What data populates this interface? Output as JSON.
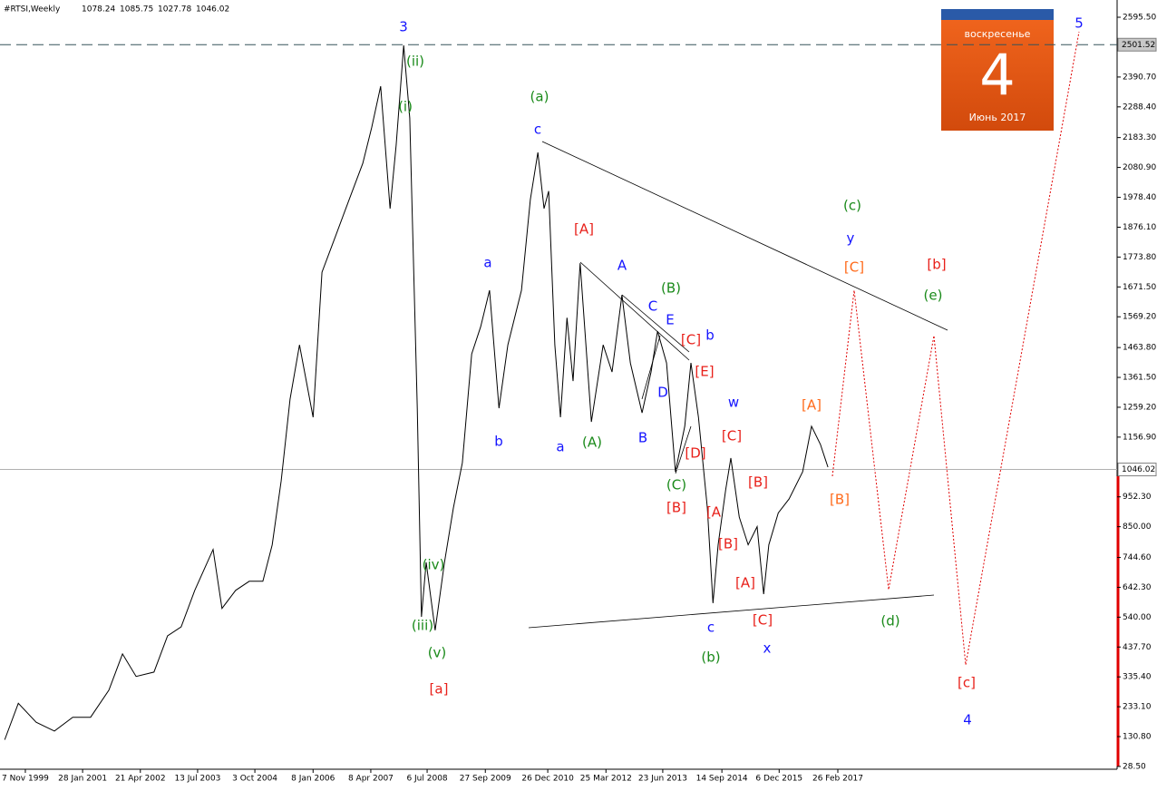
{
  "chart_data": {
    "type": "line",
    "title": "#RTSI,Weekly",
    "ohlc": [
      1078.24,
      1085.75,
      1027.78,
      1046.02
    ],
    "color": "#000000",
    "x": [
      1999.41,
      1999.7,
      2000.08,
      2000.47,
      2000.86,
      2001.24,
      2001.63,
      2001.92,
      2002.21,
      2002.59,
      2002.88,
      2003.17,
      2003.46,
      2003.85,
      2004.04,
      2004.33,
      2004.62,
      2004.91,
      2005.11,
      2005.3,
      2005.49,
      2005.69,
      2005.98,
      2006.17,
      2006.46,
      2006.75,
      2007.04,
      2007.23,
      2007.42,
      2007.62,
      2007.75,
      2007.91,
      2008.04,
      2008.2,
      2008.29,
      2008.39,
      2008.58,
      2008.78,
      2008.97,
      2009.16,
      2009.36,
      2009.55,
      2009.74,
      2009.94,
      2010.13,
      2010.42,
      2010.61,
      2010.77,
      2010.9,
      2011.0,
      2011.13,
      2011.25,
      2011.39,
      2011.52,
      2011.67,
      2011.91,
      2012.16,
      2012.35,
      2012.56,
      2012.74,
      2012.99,
      2013.18,
      2013.32,
      2013.51,
      2013.7,
      2013.9,
      2014.03,
      2014.19,
      2014.38,
      2014.5,
      2014.61,
      2014.77,
      2014.88,
      2015.06,
      2015.25,
      2015.44,
      2015.58,
      2015.69,
      2015.89,
      2016.12,
      2016.41,
      2016.6,
      2016.79,
      2016.95
    ],
    "values": [
      120,
      245,
      180,
      150,
      197,
      197,
      290,
      414,
      337,
      352,
      476,
      507,
      632,
      772,
      570,
      632,
      663,
      663,
      788,
      1007,
      1287,
      1473,
      1225,
      1722,
      1846,
      1971,
      2095,
      2219,
      2359,
      1940,
      2157,
      2499,
      2250,
      1256,
      541,
      728,
      495,
      728,
      914,
      1069,
      1442,
      1535,
      1660,
      1256,
      1473,
      1660,
      1971,
      2132,
      1940,
      2000,
      1473,
      1225,
      1566,
      1349,
      1753,
      1209,
      1473,
      1380,
      1644,
      1411,
      1240,
      1380,
      1520,
      1411,
      1038,
      1194,
      1411,
      1225,
      914,
      588,
      788,
      976,
      1085,
      883,
      788,
      850,
      619,
      788,
      897,
      945,
      1038,
      1194,
      1132,
      1054
    ],
    "xlim": [
      1999.31,
      2023.11
    ],
    "ylim": [
      19,
      2654.6
    ],
    "xticks": [
      {
        "value": 1999.85,
        "label": "7 Nov 1999"
      },
      {
        "value": 2001.07,
        "label": "28 Jan 2001"
      },
      {
        "value": 2002.3,
        "label": "21 Apr 2002"
      },
      {
        "value": 2003.52,
        "label": "13 Jul 2003"
      },
      {
        "value": 2004.74,
        "label": "3 Oct 2004"
      },
      {
        "value": 2005.98,
        "label": "8 Jan 2006"
      },
      {
        "value": 2007.21,
        "label": "8 Apr 2007"
      },
      {
        "value": 2008.41,
        "label": "6 Jul 2008"
      },
      {
        "value": 2009.65,
        "label": "27 Sep 2009"
      },
      {
        "value": 2010.98,
        "label": "26 Dec 2010"
      },
      {
        "value": 2012.22,
        "label": "25 Mar 2012"
      },
      {
        "value": 2013.43,
        "label": "23 Jun 2013"
      },
      {
        "value": 2014.69,
        "label": "14 Sep 2014"
      },
      {
        "value": 2015.91,
        "label": "6 Dec 2015"
      },
      {
        "value": 2017.16,
        "label": "26 Feb 2017"
      }
    ],
    "yticks": [
      {
        "value": 2595.5,
        "label": "2595.50"
      },
      {
        "value": 2390.7,
        "label": "2390.70"
      },
      {
        "value": 2288.4,
        "label": "2288.40"
      },
      {
        "value": 2183.3,
        "label": "2183.30"
      },
      {
        "value": 2080.9,
        "label": "2080.90"
      },
      {
        "value": 1978.4,
        "label": "1978.40"
      },
      {
        "value": 1876.1,
        "label": "1876.10"
      },
      {
        "value": 1773.8,
        "label": "1773.80"
      },
      {
        "value": 1671.5,
        "label": "1671.50"
      },
      {
        "value": 1569.2,
        "label": "1569.20"
      },
      {
        "value": 1463.8,
        "label": "1463.80"
      },
      {
        "value": 1361.5,
        "label": "1361.50"
      },
      {
        "value": 1259.2,
        "label": "1259.20"
      },
      {
        "value": 1156.9,
        "label": "1156.90"
      },
      {
        "value": 952.3,
        "label": "952.30"
      },
      {
        "value": 850,
        "label": "850.00"
      },
      {
        "value": 744.6,
        "label": "744.60"
      },
      {
        "value": 642.3,
        "label": "642.30"
      },
      {
        "value": 540,
        "label": "540.00"
      },
      {
        "value": 437.7,
        "label": "437.70"
      },
      {
        "value": 335.4,
        "label": "335.40"
      },
      {
        "value": 233.1,
        "label": "233.10"
      },
      {
        "value": 130.8,
        "label": "130.80"
      },
      {
        "value": 28.5,
        "label": "28.50"
      }
    ],
    "hlines": [
      2501.52,
      1046.02
    ],
    "annotations": [
      {
        "text": "3",
        "color": "#1414ff"
      },
      {
        "text": "5",
        "color": "#1414ff"
      },
      {
        "text": "(ii)",
        "color": "#1a8a1a"
      },
      {
        "text": "(i)",
        "color": "#1a8a1a"
      },
      {
        "text": "(iv)",
        "color": "#1a8a1a"
      },
      {
        "text": "(iii)",
        "color": "#1a8a1a"
      },
      {
        "text": "(v)",
        "color": "#1a8a1a"
      },
      {
        "text": "[a]",
        "color": "#e8201a"
      },
      {
        "text": "(a)",
        "color": "#1a8a1a"
      },
      {
        "text": "c",
        "color": "#1414ff"
      },
      {
        "text": "[A]",
        "color": "#e8201a"
      },
      {
        "text": "A",
        "color": "#1414ff"
      },
      {
        "text": "a",
        "color": "#1414ff"
      },
      {
        "text": "b",
        "color": "#1414ff"
      },
      {
        "text": "a",
        "color": "#1414ff"
      },
      {
        "text": "(A)",
        "color": "#1a8a1a"
      },
      {
        "text": "B",
        "color": "#1414ff"
      },
      {
        "text": "C",
        "color": "#1414ff"
      },
      {
        "text": "(B)",
        "color": "#1a8a1a"
      },
      {
        "text": "E",
        "color": "#1414ff"
      },
      {
        "text": "[C]",
        "color": "#e8201a"
      },
      {
        "text": "b",
        "color": "#1414ff"
      },
      {
        "text": "[E]",
        "color": "#e8201a"
      },
      {
        "text": "D",
        "color": "#1414ff"
      },
      {
        "text": "w",
        "color": "#1414ff"
      },
      {
        "text": "[D]",
        "color": "#e8201a"
      },
      {
        "text": "[C]",
        "color": "#e8201a"
      },
      {
        "text": "(C)",
        "color": "#1a8a1a"
      },
      {
        "text": "[B]",
        "color": "#e8201a"
      },
      {
        "text": "[B]",
        "color": "#e8201a"
      },
      {
        "text": "[A",
        "color": "#e8201a"
      },
      {
        "text": "[B]",
        "color": "#e8201a"
      },
      {
        "text": "[A]",
        "color": "#e8201a"
      },
      {
        "text": "c",
        "color": "#1414ff"
      },
      {
        "text": "[C]",
        "color": "#e8201a"
      },
      {
        "text": "(b)",
        "color": "#1a8a1a"
      },
      {
        "text": "x",
        "color": "#1414ff"
      },
      {
        "text": "[A]",
        "color": "#ff6a1a"
      },
      {
        "text": "[B]",
        "color": "#ff6a1a"
      },
      {
        "text": "(c)",
        "color": "#1a8a1a"
      },
      {
        "text": "y",
        "color": "#1414ff"
      },
      {
        "text": "[C]",
        "color": "#ff6a1a"
      },
      {
        "text": "[b]",
        "color": "#e8201a"
      },
      {
        "text": "(e)",
        "color": "#1a8a1a"
      },
      {
        "text": "(d)",
        "color": "#1a8a1a"
      },
      {
        "text": "[c]",
        "color": "#e8201a"
      },
      {
        "text": "4",
        "color": "#1414ff"
      }
    ]
  },
  "calendar": {
    "weekday": "воскресенье",
    "day": 4,
    "month": "Июнь 2017"
  }
}
